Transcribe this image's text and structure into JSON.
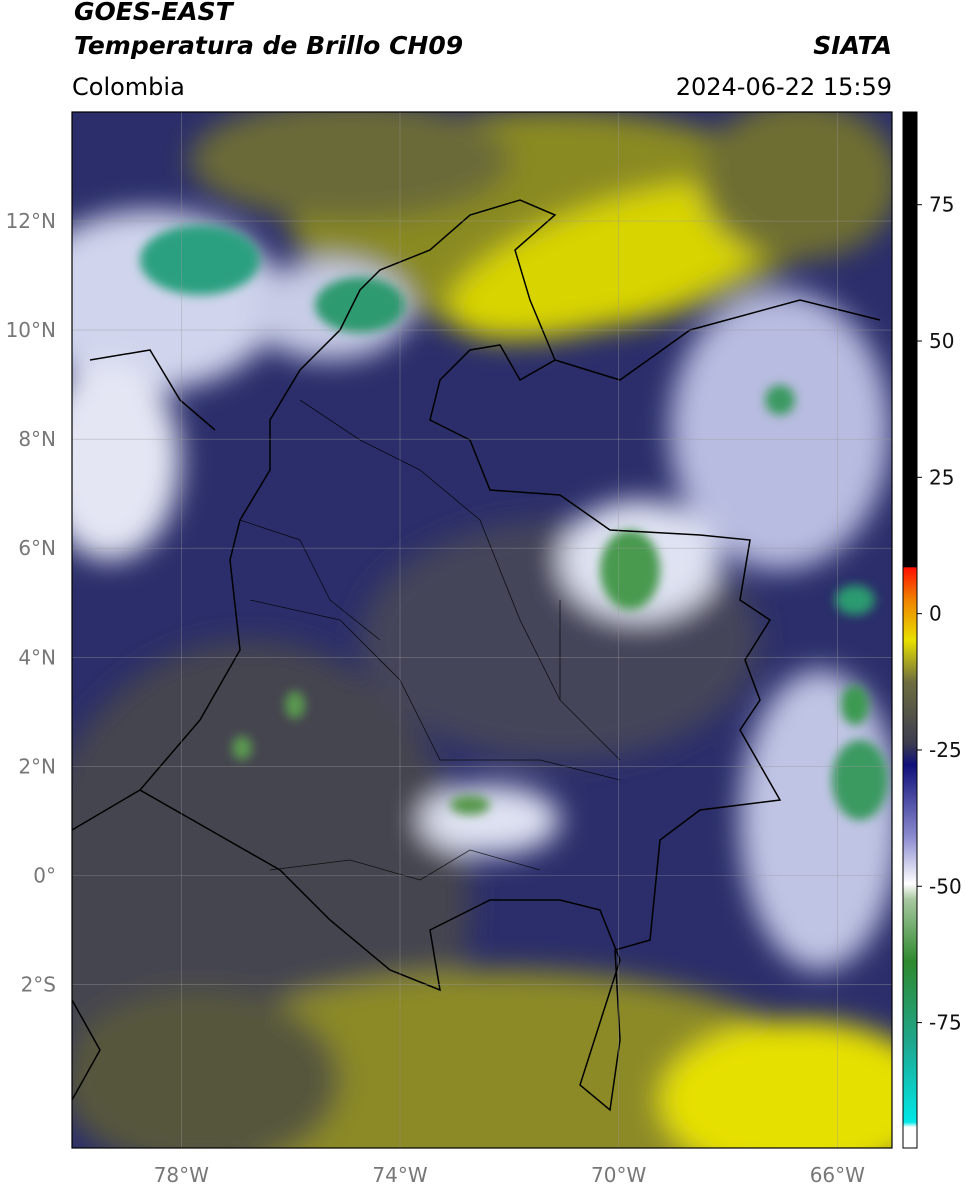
{
  "header": {
    "satellite": "GOES-EAST",
    "product": "Temperatura de Brillo CH09",
    "agency": "SIATA",
    "region": "Colombia",
    "datetime": "2024-06-22 15:59"
  },
  "map": {
    "lon_range": [
      -80,
      -65
    ],
    "lat_range": [
      -5,
      14
    ],
    "grid": true,
    "lon_ticks": [
      {
        "value": -78,
        "label": "78°W"
      },
      {
        "value": -74,
        "label": "74°W"
      },
      {
        "value": -70,
        "label": "70°W"
      },
      {
        "value": -66,
        "label": "66°W"
      }
    ],
    "lat_ticks": [
      {
        "value": 12,
        "label": "12°N"
      },
      {
        "value": 10,
        "label": "10°N"
      },
      {
        "value": 8,
        "label": "8°N"
      },
      {
        "value": 6,
        "label": "6°N"
      },
      {
        "value": 4,
        "label": "4°N"
      },
      {
        "value": 2,
        "label": "2°N"
      },
      {
        "value": 0,
        "label": "0°"
      },
      {
        "value": -2,
        "label": "2°S"
      }
    ]
  },
  "colorbar": {
    "range": [
      -98,
      92
    ],
    "ticks": [
      75,
      50,
      25,
      0,
      -25,
      -50,
      -75
    ]
  }
}
